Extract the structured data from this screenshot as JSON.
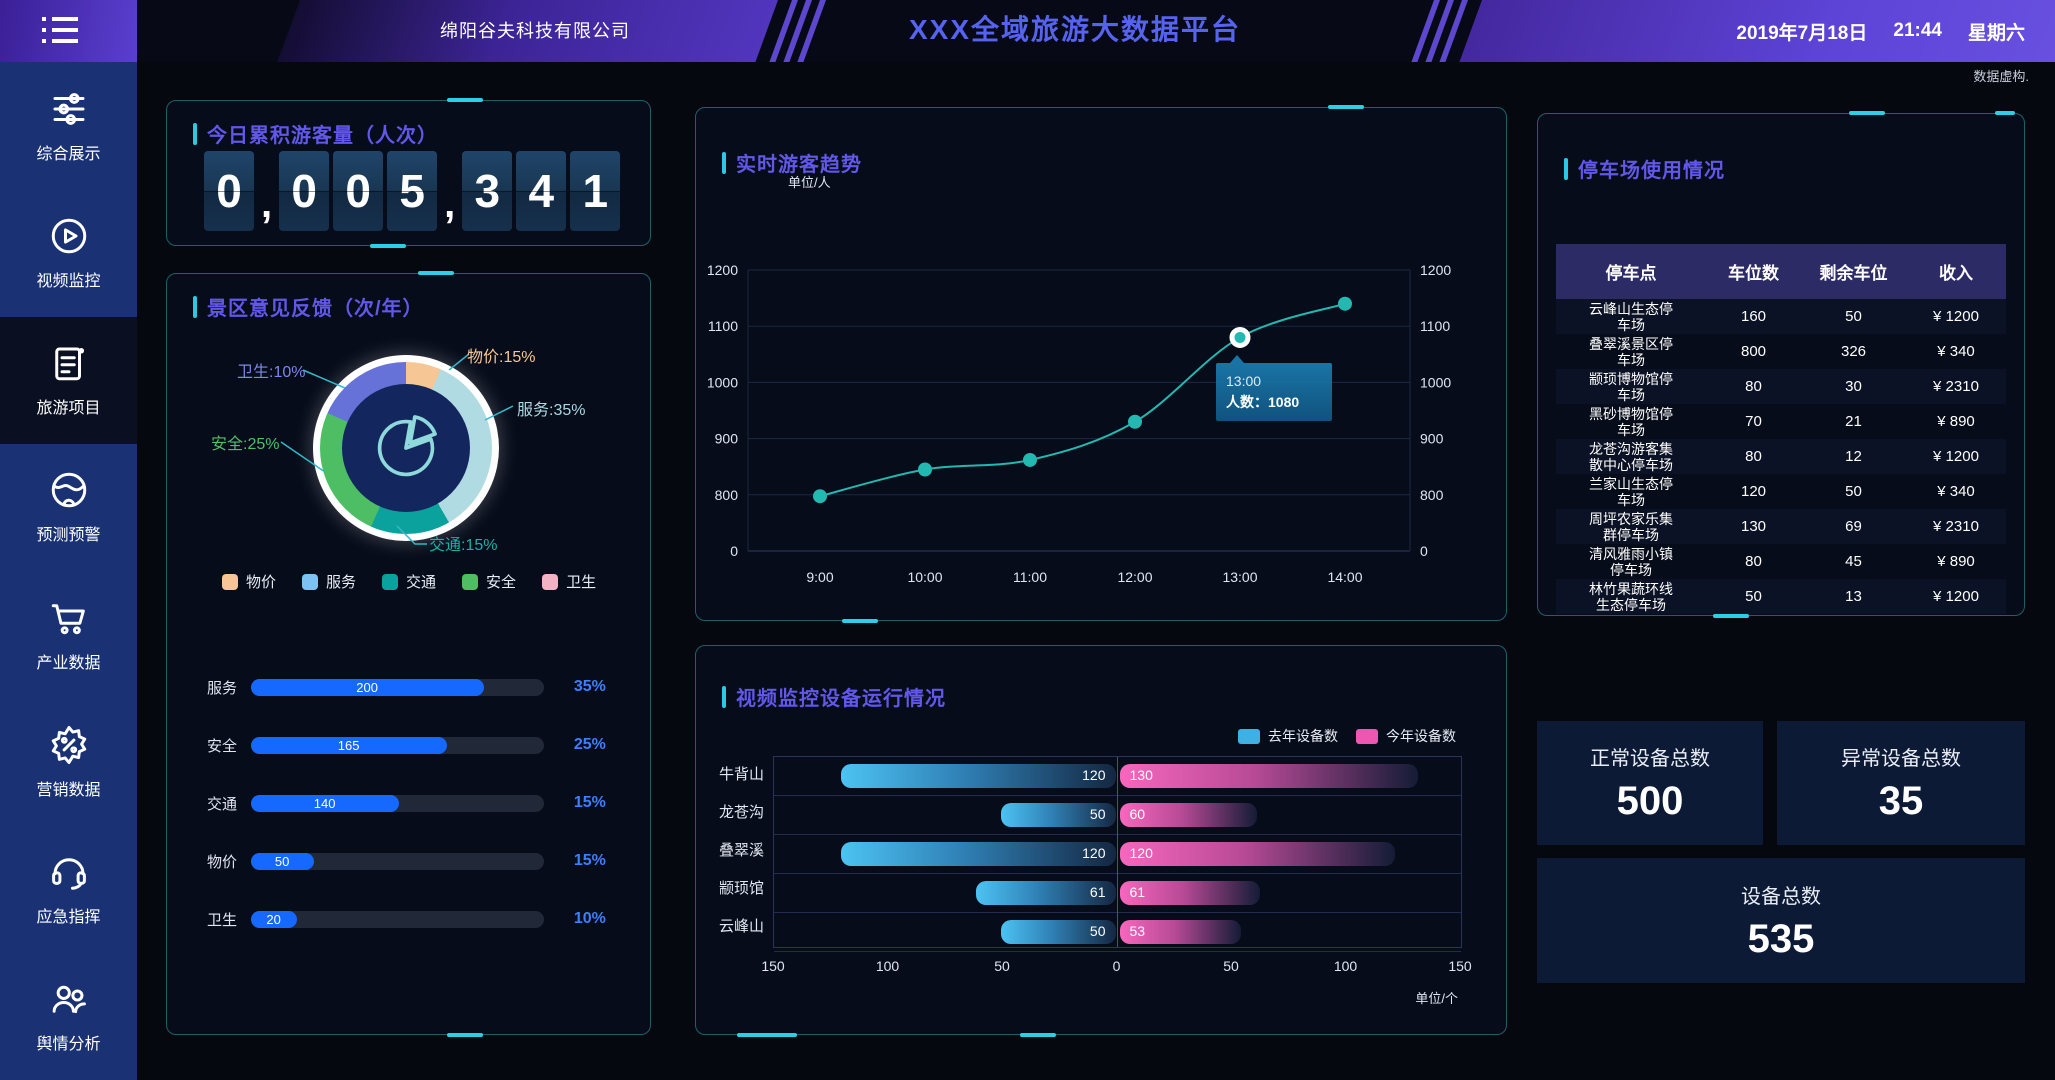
{
  "header": {
    "company": "绵阳谷夫科技有限公司",
    "title": "XXX全域旅游大数据平台",
    "date": "2019年7月18日",
    "time": "21:44",
    "weekday": "星期六",
    "note": "数据虚构."
  },
  "sidebar": {
    "items": [
      {
        "label": "综合展示",
        "icon": "sliders-icon",
        "active": false
      },
      {
        "label": "视频监控",
        "icon": "play-icon",
        "active": false
      },
      {
        "label": "旅游项目",
        "icon": "clipboard-icon",
        "active": true
      },
      {
        "label": "预测预警",
        "icon": "globe-icon",
        "active": false
      },
      {
        "label": "产业数据",
        "icon": "cart-icon",
        "active": false
      },
      {
        "label": "营销数据",
        "icon": "discount-icon",
        "active": false
      },
      {
        "label": "应急指挥",
        "icon": "headset-icon",
        "active": false
      },
      {
        "label": "舆情分析",
        "icon": "people-icon",
        "active": false
      }
    ]
  },
  "visitors_panel": {
    "title": "今日累积游客量（人次）",
    "value": "0,005,341",
    "digits": [
      "0",
      "0",
      "0",
      "5",
      "3",
      "4",
      "1"
    ],
    "commas_after": [
      0,
      3
    ]
  },
  "feedback_panel": {
    "title": "景区意见反馈（次/年）",
    "chart_data": {
      "type": "pie",
      "start_angle": -30,
      "slices": [
        {
          "label": "物价",
          "percent": 15,
          "color": "#f6c795",
          "legend_color": "#f6c795",
          "callout_color": "#f6c795"
        },
        {
          "label": "服务",
          "percent": 35,
          "color": "#b0dbe3",
          "legend_color": "#7ec2f3",
          "callout_color": "#a9d8e0"
        },
        {
          "label": "交通",
          "percent": 15,
          "color": "#0ba29d",
          "legend_color": "#0ba29d",
          "callout_color": "#18b2a8"
        },
        {
          "label": "安全",
          "percent": 25,
          "color": "#4dbe63",
          "legend_color": "#4dbe63",
          "callout_color": "#4dc06a"
        },
        {
          "label": "卫生",
          "percent": 10,
          "color": "#6672d8",
          "legend_color": "#f2b3c4",
          "callout_color": "#7b87ea"
        }
      ]
    },
    "bars_chart_data": {
      "type": "bar",
      "categories": [
        "服务",
        "安全",
        "交通",
        "物价",
        "卫生"
      ],
      "values": [
        200,
        165,
        140,
        50,
        20
      ],
      "percents": [
        "35%",
        "25%",
        "15%",
        "15%",
        "10%"
      ],
      "fill_ratios": [
        0.755,
        0.635,
        0.48,
        0.205,
        0.15
      ],
      "bar_color": "#1569ff"
    }
  },
  "trend_panel": {
    "title": "实时游客趋势",
    "unit": "单位/人",
    "chart_data": {
      "type": "line",
      "x": [
        "9:00",
        "10:00",
        "11:00",
        "12:00",
        "13:00",
        "14:00"
      ],
      "values": [
        780,
        845,
        862,
        930,
        1080,
        1140
      ],
      "yticks": [
        "1200",
        "1100",
        "1000",
        "900",
        "800",
        "0"
      ],
      "highlight_index": 4,
      "tooltip": [
        "13:00",
        "人数：1080"
      ],
      "line_color": "#23b8b0"
    }
  },
  "devices_panel": {
    "title": "视频监控设备运行情况",
    "unit": "单位/个",
    "legend": [
      {
        "label": "去年设备数",
        "color": "#3fb0e4"
      },
      {
        "label": "今年设备数",
        "color": "#ef56b2"
      }
    ],
    "chart_data": {
      "type": "bar",
      "categories": [
        "牛背山",
        "龙苍沟",
        "叠翠溪",
        "颛顼馆",
        "云峰山"
      ],
      "series": [
        {
          "name": "去年设备数",
          "values": [
            120,
            50,
            120,
            61,
            50
          ]
        },
        {
          "name": "今年设备数",
          "values": [
            130,
            60,
            120,
            61,
            53
          ]
        }
      ],
      "xticks": [
        "150",
        "100",
        "50",
        "0",
        "50",
        "100",
        "150"
      ],
      "xmax": 150
    }
  },
  "parking_panel": {
    "title": "停车场使用情况",
    "columns": [
      "停车点",
      "车位数",
      "剩余车位",
      "收入"
    ],
    "rows": [
      [
        "云峰山生态停车场",
        "160",
        "50",
        "¥ 1200"
      ],
      [
        "叠翠溪景区停车场",
        "800",
        "326",
        "¥ 340"
      ],
      [
        "颛顼博物馆停车场",
        "80",
        "30",
        "¥ 2310"
      ],
      [
        "黑砂博物馆停车场",
        "70",
        "21",
        "¥ 890"
      ],
      [
        "龙苍沟游客集散中心停车场",
        "80",
        "12",
        "¥ 1200"
      ],
      [
        "兰家山生态停车场",
        "120",
        "50",
        "¥ 340"
      ],
      [
        "周坪农家乐集群停车场",
        "130",
        "69",
        "¥ 2310"
      ],
      [
        "清风雅雨小镇停车场",
        "80",
        "45",
        "¥ 890"
      ],
      [
        "林竹果蔬环线生态停车场",
        "50",
        "13",
        "¥ 1200"
      ]
    ]
  },
  "totals": [
    {
      "label": "正常设备总数",
      "value": "500"
    },
    {
      "label": "异常设备总数",
      "value": "35"
    },
    {
      "label": "设备总数",
      "value": "535"
    }
  ]
}
